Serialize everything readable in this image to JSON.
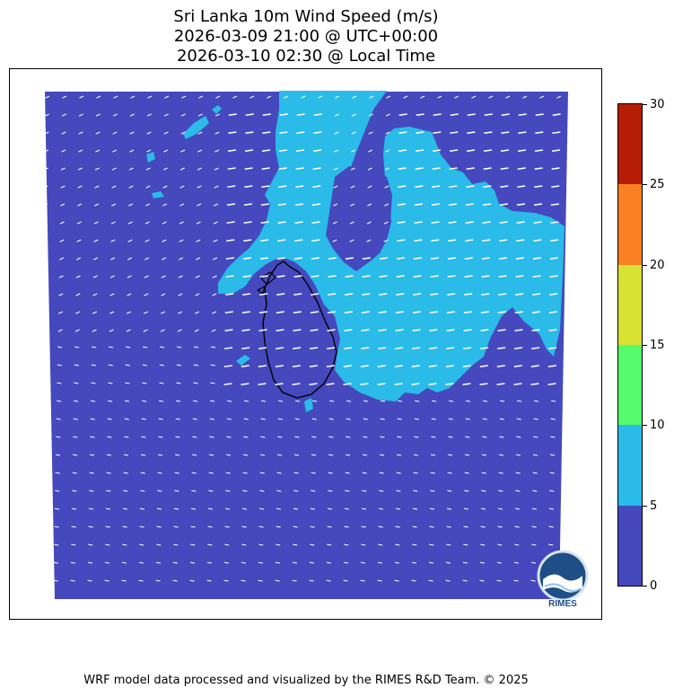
{
  "title": {
    "line1": "Sri Lanka 10m Wind Speed (m/s)",
    "line2": "2026-03-09 21:00 @ UTC+00:00",
    "line3": "2026-03-10 02:30 @ Local Time"
  },
  "colorbar": {
    "levels": [
      {
        "min": 0,
        "max": 5,
        "color": "#4549bd"
      },
      {
        "min": 5,
        "max": 10,
        "color": "#2abbe9"
      },
      {
        "min": 10,
        "max": 15,
        "color": "#55fb6b"
      },
      {
        "min": 15,
        "max": 20,
        "color": "#d8e232"
      },
      {
        "min": 20,
        "max": 25,
        "color": "#fb7f23"
      },
      {
        "min": 25,
        "max": 30,
        "color": "#b51d05"
      }
    ],
    "tick_labels": [
      "0",
      "5",
      "10",
      "15",
      "20",
      "25",
      "30"
    ]
  },
  "logo": {
    "text": "RIMES"
  },
  "footer": "WRF model data processed and visualized by the RIMES R&D Team. © 2025"
}
